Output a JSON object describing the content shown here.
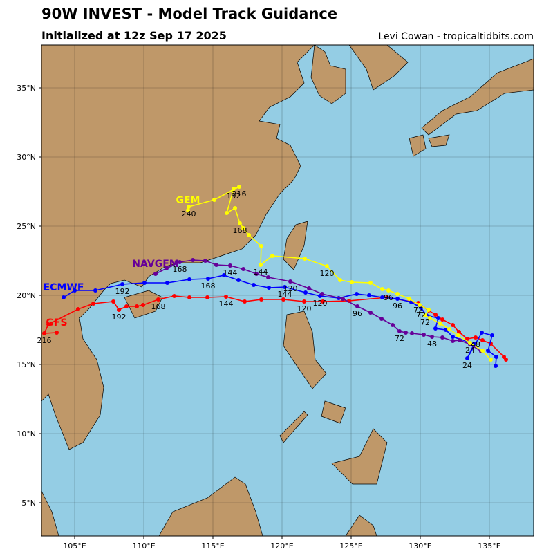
{
  "header": {
    "title": "90W INVEST - Model Track Guidance",
    "subtitle": "Initialized at 12z Sep 17 2025",
    "credit": "Levi Cowan - tropicaltidbits.com"
  },
  "map": {
    "lonlim": [
      102.6,
      138.2
    ],
    "latlim": [
      2.6,
      38.1
    ],
    "grid": true,
    "lonticks": [
      {
        "value": 105,
        "label": "105°E"
      },
      {
        "value": 110,
        "label": "110°E"
      },
      {
        "value": 115,
        "label": "115°E"
      },
      {
        "value": 120,
        "label": "120°E"
      },
      {
        "value": 125,
        "label": "125°E"
      },
      {
        "value": 130,
        "label": "130°E"
      },
      {
        "value": 135,
        "label": "135°E"
      }
    ],
    "latticks": [
      {
        "value": 5,
        "label": "5°N"
      },
      {
        "value": 10,
        "label": "10°N"
      },
      {
        "value": 15,
        "label": "15°N"
      },
      {
        "value": 20,
        "label": "20°N"
      },
      {
        "value": 25,
        "label": "25°N"
      },
      {
        "value": 30,
        "label": "30°N"
      },
      {
        "value": 35,
        "label": "35°N"
      }
    ]
  },
  "models": [
    {
      "name": "GFS",
      "color": "#ff0000",
      "hours": [
        48,
        72,
        120,
        144,
        168,
        192,
        216
      ],
      "points": [
        {
          "lon": 136.2,
          "lat": 15.35
        },
        {
          "lon": 136.05,
          "lat": 15.55
        },
        {
          "lon": 135.1,
          "lat": 16.5
        },
        {
          "lon": 134.5,
          "lat": 16.75
        },
        {
          "lon": 134.0,
          "lat": 16.95
        },
        {
          "lon": 133.4,
          "lat": 16.85
        },
        {
          "lon": 132.8,
          "lat": 17.35
        },
        {
          "lon": 132.35,
          "lat": 17.85
        },
        {
          "lon": 131.6,
          "lat": 18.25
        },
        {
          "lon": 131.1,
          "lat": 18.6
        },
        {
          "lon": 130.6,
          "lat": 18.9
        },
        {
          "lon": 129.85,
          "lat": 19.45
        },
        {
          "lon": 127.6,
          "lat": 19.85
        },
        {
          "lon": 124.85,
          "lat": 19.6
        },
        {
          "lon": 122.95,
          "lat": 19.55
        },
        {
          "lon": 121.6,
          "lat": 19.55
        },
        {
          "lon": 120.1,
          "lat": 19.7
        },
        {
          "lon": 118.5,
          "lat": 19.7
        },
        {
          "lon": 117.3,
          "lat": 19.55
        },
        {
          "lon": 115.95,
          "lat": 19.9
        },
        {
          "lon": 114.6,
          "lat": 19.85
        },
        {
          "lon": 113.3,
          "lat": 19.85
        },
        {
          "lon": 112.2,
          "lat": 19.95
        },
        {
          "lon": 111.05,
          "lat": 19.7
        },
        {
          "lon": 109.95,
          "lat": 19.3
        },
        {
          "lon": 109.5,
          "lat": 19.2
        },
        {
          "lon": 108.75,
          "lat": 19.2
        },
        {
          "lon": 108.2,
          "lat": 18.95
        },
        {
          "lon": 107.8,
          "lat": 19.55
        },
        {
          "lon": 106.35,
          "lat": 19.4
        },
        {
          "lon": 105.25,
          "lat": 19.0
        },
        {
          "lon": 103.1,
          "lat": 17.9
        },
        {
          "lon": 102.8,
          "lat": 17.25
        },
        {
          "lon": 103.7,
          "lat": 17.3
        }
      ]
    },
    {
      "name": "ECMWF",
      "color": "#0000ff",
      "hours": [
        24,
        72,
        96,
        120,
        144,
        168,
        192
      ],
      "points": [
        {
          "lon": 135.45,
          "lat": 14.9
        },
        {
          "lon": 135.5,
          "lat": 15.55
        },
        {
          "lon": 134.9,
          "lat": 16.0
        },
        {
          "lon": 135.2,
          "lat": 17.1
        },
        {
          "lon": 134.45,
          "lat": 17.3
        },
        {
          "lon": 133.4,
          "lat": 15.45
        },
        {
          "lon": 133.9,
          "lat": 16.5
        },
        {
          "lon": 132.35,
          "lat": 17.0
        },
        {
          "lon": 131.85,
          "lat": 17.5
        },
        {
          "lon": 131.1,
          "lat": 17.6
        },
        {
          "lon": 131.3,
          "lat": 18.35
        },
        {
          "lon": 130.45,
          "lat": 18.55
        },
        {
          "lon": 130.05,
          "lat": 19.1
        },
        {
          "lon": 129.35,
          "lat": 19.5
        },
        {
          "lon": 128.35,
          "lat": 19.75
        },
        {
          "lon": 127.25,
          "lat": 19.85
        },
        {
          "lon": 126.3,
          "lat": 20.0
        },
        {
          "lon": 125.4,
          "lat": 20.1
        },
        {
          "lon": 124.1,
          "lat": 19.8
        },
        {
          "lon": 122.75,
          "lat": 19.95
        },
        {
          "lon": 121.7,
          "lat": 20.2
        },
        {
          "lon": 120.2,
          "lat": 20.6
        },
        {
          "lon": 119.05,
          "lat": 20.55
        },
        {
          "lon": 117.95,
          "lat": 20.75
        },
        {
          "lon": 116.85,
          "lat": 21.1
        },
        {
          "lon": 115.8,
          "lat": 21.45
        },
        {
          "lon": 114.65,
          "lat": 21.2
        },
        {
          "lon": 113.3,
          "lat": 21.15
        },
        {
          "lon": 111.7,
          "lat": 20.9
        },
        {
          "lon": 110.05,
          "lat": 20.9
        },
        {
          "lon": 108.45,
          "lat": 20.8
        },
        {
          "lon": 106.5,
          "lat": 20.35
        },
        {
          "lon": 105.0,
          "lat": 20.35
        },
        {
          "lon": 104.2,
          "lat": 19.85
        }
      ]
    },
    {
      "name": "NAVGEM",
      "color": "#660099",
      "hours": [
        48,
        72,
        96,
        120,
        144,
        168
      ],
      "points": [
        {
          "lon": 134.4,
          "lat": 15.95
        },
        {
          "lon": 133.6,
          "lat": 16.45
        },
        {
          "lon": 132.85,
          "lat": 16.75
        },
        {
          "lon": 132.35,
          "lat": 16.7
        },
        {
          "lon": 131.6,
          "lat": 16.95
        },
        {
          "lon": 130.85,
          "lat": 17.0
        },
        {
          "lon": 130.25,
          "lat": 17.15
        },
        {
          "lon": 129.4,
          "lat": 17.25
        },
        {
          "lon": 128.95,
          "lat": 17.3
        },
        {
          "lon": 128.5,
          "lat": 17.4
        },
        {
          "lon": 128.0,
          "lat": 17.85
        },
        {
          "lon": 127.2,
          "lat": 18.3
        },
        {
          "lon": 126.4,
          "lat": 18.75
        },
        {
          "lon": 125.45,
          "lat": 19.2
        },
        {
          "lon": 124.4,
          "lat": 19.75
        },
        {
          "lon": 122.9,
          "lat": 20.1
        },
        {
          "lon": 121.95,
          "lat": 20.5
        },
        {
          "lon": 120.6,
          "lat": 21.0
        },
        {
          "lon": 119.0,
          "lat": 21.3
        },
        {
          "lon": 118.15,
          "lat": 21.55
        },
        {
          "lon": 117.2,
          "lat": 21.9
        },
        {
          "lon": 116.25,
          "lat": 22.15
        },
        {
          "lon": 115.25,
          "lat": 22.2
        },
        {
          "lon": 114.45,
          "lat": 22.5
        },
        {
          "lon": 113.55,
          "lat": 22.55
        },
        {
          "lon": 112.6,
          "lat": 22.4
        },
        {
          "lon": 111.65,
          "lat": 21.95
        },
        {
          "lon": 110.85,
          "lat": 21.55
        }
      ]
    },
    {
      "name": "GEM",
      "color": "#ffff00",
      "hours": [
        24,
        72,
        96,
        120,
        144,
        168,
        192,
        216,
        240
      ],
      "points": [
        {
          "lon": 135.1,
          "lat": 15.35
        },
        {
          "lon": 134.5,
          "lat": 16.0
        },
        {
          "lon": 133.6,
          "lat": 16.55
        },
        {
          "lon": 132.75,
          "lat": 17.1
        },
        {
          "lon": 132.1,
          "lat": 17.55
        },
        {
          "lon": 131.45,
          "lat": 17.95
        },
        {
          "lon": 130.7,
          "lat": 18.35
        },
        {
          "lon": 130.35,
          "lat": 18.55
        },
        {
          "lon": 130.6,
          "lat": 18.95
        },
        {
          "lon": 129.95,
          "lat": 19.3
        },
        {
          "lon": 129.2,
          "lat": 19.75
        },
        {
          "lon": 128.35,
          "lat": 20.1
        },
        {
          "lon": 127.7,
          "lat": 20.35
        },
        {
          "lon": 127.25,
          "lat": 20.45
        },
        {
          "lon": 126.4,
          "lat": 20.9
        },
        {
          "lon": 125.05,
          "lat": 20.95
        },
        {
          "lon": 124.2,
          "lat": 21.1
        },
        {
          "lon": 123.25,
          "lat": 22.1
        },
        {
          "lon": 121.65,
          "lat": 22.65
        },
        {
          "lon": 119.3,
          "lat": 22.85
        },
        {
          "lon": 118.45,
          "lat": 22.2
        },
        {
          "lon": 118.5,
          "lat": 23.55
        },
        {
          "lon": 117.6,
          "lat": 24.35
        },
        {
          "lon": 117.2,
          "lat": 24.85
        },
        {
          "lon": 116.95,
          "lat": 25.2
        },
        {
          "lon": 116.6,
          "lat": 26.3
        },
        {
          "lon": 116.0,
          "lat": 25.95
        },
        {
          "lon": 116.5,
          "lat": 27.7
        },
        {
          "lon": 116.9,
          "lat": 27.85
        },
        {
          "lon": 115.1,
          "lat": 26.9
        },
        {
          "lon": 113.25,
          "lat": 26.4
        },
        {
          "lon": 113.2,
          "lat": 26.15
        }
      ]
    }
  ]
}
